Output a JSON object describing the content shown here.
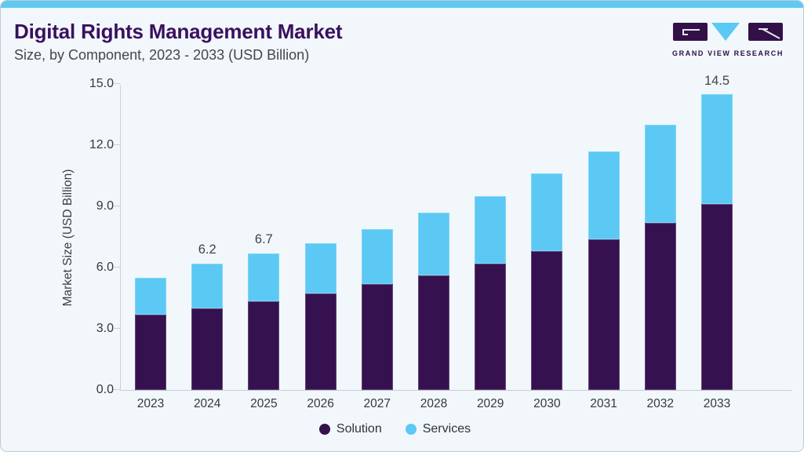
{
  "header": {
    "title": "Digital Rights Management Market",
    "subtitle": "Size, by Component, 2023 - 2033 (USD Billion)"
  },
  "logo": {
    "wordmark": "GRAND VIEW RESEARCH",
    "mark_purple": "#341048",
    "mark_blue": "#5BC9F4"
  },
  "colors": {
    "background": "#F1F7FB",
    "top_accent": "#5FC9F3",
    "card_border": "#C5C9CC",
    "axis_line": "#CDD1D5",
    "title_text": "#3A105E",
    "body_text": "#42474B"
  },
  "chart_data": {
    "type": "bar",
    "stacked": true,
    "title": "Digital Rights Management Market Size, by Component, 2023 - 2033 (USD Billion)",
    "categories": [
      "2023",
      "2024",
      "2025",
      "2026",
      "2027",
      "2028",
      "2029",
      "2030",
      "2031",
      "2032",
      "2033"
    ],
    "series": [
      {
        "name": "Solution",
        "color": "#361150",
        "values": [
          3.7,
          4.0,
          4.35,
          4.75,
          5.2,
          5.6,
          6.2,
          6.8,
          7.4,
          8.2,
          9.1
        ]
      },
      {
        "name": "Services",
        "color": "#5BC9F4",
        "values": [
          1.8,
          2.2,
          2.35,
          2.45,
          2.7,
          3.1,
          3.3,
          3.8,
          4.3,
          4.8,
          5.4
        ]
      }
    ],
    "totals": [
      5.5,
      6.2,
      6.7,
      7.2,
      7.9,
      8.7,
      9.5,
      10.6,
      11.7,
      13.0,
      14.5
    ],
    "bar_labels": [
      null,
      "6.2",
      "6.7",
      null,
      null,
      null,
      null,
      null,
      null,
      null,
      "14.5"
    ],
    "ylabel": "Market Size (USD Billion)",
    "yticks": [
      "0.0",
      "3.0",
      "6.0",
      "9.0",
      "12.0",
      "15.0"
    ],
    "ylim": [
      0,
      15
    ],
    "grid": false,
    "legend_position": "bottom",
    "legend": [
      "Solution",
      "Services"
    ]
  }
}
